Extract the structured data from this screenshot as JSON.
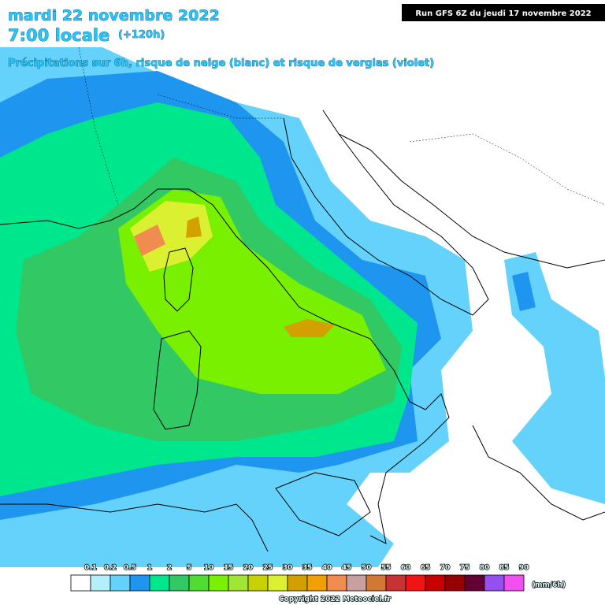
{
  "header": {
    "date": "mardi 22 novembre 2022",
    "time": "7:00 locale",
    "lead": "(+120h)",
    "subtitle": "Précipitations sur 6h, risque de neige (blanc) et risque de verglas (violet)",
    "run": "Run GFS 6Z du jeudi 17 novembre 2022"
  },
  "legend": {
    "unit": "(mm/6h)",
    "items": [
      {
        "label": "0.1",
        "color": "#ffffff"
      },
      {
        "label": "0.2",
        "color": "#b4f0fa"
      },
      {
        "label": "0.5",
        "color": "#64d2fa"
      },
      {
        "label": "1",
        "color": "#1e96f0"
      },
      {
        "label": "2",
        "color": "#00e68c"
      },
      {
        "label": "5",
        "color": "#32c864"
      },
      {
        "label": "10",
        "color": "#50dc32"
      },
      {
        "label": "15",
        "color": "#78f000"
      },
      {
        "label": "20",
        "color": "#a0e632"
      },
      {
        "label": "25",
        "color": "#c8d200"
      },
      {
        "label": "30",
        "color": "#dcf032"
      },
      {
        "label": "35",
        "color": "#d2a000"
      },
      {
        "label": "40",
        "color": "#f0a000"
      },
      {
        "label": "45",
        "color": "#f08c50"
      },
      {
        "label": "50",
        "color": "#c8a0a0"
      },
      {
        "label": "55",
        "color": "#d27832"
      },
      {
        "label": "60",
        "color": "#c83232"
      },
      {
        "label": "65",
        "color": "#f01414"
      },
      {
        "label": "70",
        "color": "#c80000"
      },
      {
        "label": "75",
        "color": "#960000"
      },
      {
        "label": "80",
        "color": "#640032"
      },
      {
        "label": "85",
        "color": "#9650f0"
      },
      {
        "label": "90",
        "color": "#f050f0"
      }
    ]
  },
  "footer": {
    "copyright": "Copyright 2022 Meteociel.fr"
  }
}
